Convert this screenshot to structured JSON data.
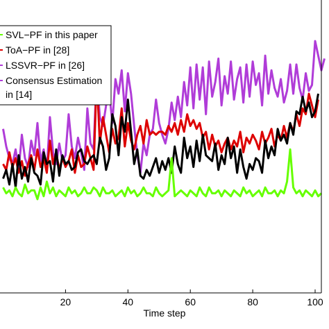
{
  "chart_data": {
    "type": "line",
    "xlabel": "Time step",
    "ylabel": "",
    "xlim": [
      -1,
      102
    ],
    "ylim": [
      0,
      10
    ],
    "x_ticks": [
      20,
      40,
      60,
      80,
      100
    ],
    "grid": false,
    "legend_position": "top-left",
    "series": [
      {
        "name": "SVL−PF in this paper",
        "color": "#66ff00",
        "y": [
          3.6,
          3.4,
          3.5,
          3.3,
          3.6,
          3.4,
          3.3,
          3.7,
          3.4,
          3.5,
          3.5,
          3.2,
          3.6,
          3.3,
          3.8,
          3.4,
          3.6,
          3.3,
          3.5,
          3.4,
          3.3,
          3.6,
          3.4,
          3.5,
          3.3,
          3.4,
          3.6,
          3.4,
          3.4,
          3.6,
          3.5,
          3.3,
          3.6,
          3.4,
          3.4,
          3.5,
          3.3,
          3.4,
          3.5,
          3.3,
          3.6,
          3.4,
          3.5,
          3.3,
          3.4,
          3.6,
          3.4,
          3.4,
          3.3,
          3.6,
          3.4,
          3.3,
          3.4,
          3.5,
          4.6,
          3.3,
          3.4,
          3.5,
          3.4,
          3.3,
          3.5,
          3.4,
          3.3,
          3.6,
          3.4,
          3.3,
          3.6,
          3.4,
          3.4,
          3.5,
          3.3,
          3.5,
          3.4,
          3.3,
          3.5,
          3.4,
          3.3,
          3.6,
          3.4,
          3.5,
          3.3,
          3.4,
          3.5,
          3.3,
          3.6,
          3.4,
          3.4,
          3.5,
          3.3,
          3.5,
          3.4,
          3.8,
          4.9,
          3.6,
          3.4,
          3.5,
          3.3,
          3.5,
          3.4,
          3.3,
          3.5,
          3.3,
          3.4
        ],
        "label_text": "SVL−PF in this paper"
      },
      {
        "name": "ToA−PF in [28]",
        "color": "#dd0000",
        "y": [
          4.4,
          4.2,
          4.8,
          4.3,
          4.6,
          4.1,
          4.5,
          4.0,
          4.4,
          4.7,
          4.2,
          4.9,
          4.3,
          4.6,
          4.1,
          5.2,
          4.4,
          4.8,
          4.2,
          4.6,
          4.3,
          4.5,
          4.9,
          4.1,
          4.7,
          4.3,
          4.4,
          5.0,
          4.6,
          4.2,
          7.4,
          5.1,
          6.0,
          5.4,
          4.8,
          5.6,
          5.1,
          5.3,
          6.3,
          5.0,
          5.8,
          5.2,
          4.9,
          5.4,
          5.7,
          5.1,
          5.9,
          5.4,
          5.5,
          5.4,
          5.5,
          5.5,
          5.4,
          5.7,
          5.5,
          5.8,
          5.4,
          5.9,
          5.5,
          6.1,
          5.7,
          5.9,
          5.6,
          5.8,
          5.3,
          5.5,
          4.9,
          5.4,
          5.0,
          5.2,
          4.8,
          5.1,
          5.3,
          4.9,
          5.2,
          5.0,
          5.5,
          4.8,
          5.3,
          5.1,
          5.4,
          5.2,
          4.9,
          5.5,
          5.1,
          5.3,
          5.6,
          5.0,
          5.4,
          5.2,
          5.7,
          5.3,
          5.8,
          5.5,
          6.1,
          5.7,
          6.3,
          6.1,
          6.8,
          6.4,
          6.0,
          6.6
        ]
      },
      {
        "name": "LSSVR−PF in [26]",
        "color": "#b03cd8",
        "y": [
          5.6,
          5.0,
          4.6,
          4.4,
          4.9,
          4.2,
          5.4,
          4.6,
          4.3,
          5.2,
          4.7,
          5.8,
          4.5,
          4.9,
          4.2,
          6.0,
          4.8,
          4.4,
          5.1,
          4.5,
          4.7,
          6.1,
          5.0,
          4.6,
          5.3,
          4.8,
          4.2,
          6.3,
          5.1,
          4.9,
          7.5,
          6.0,
          5.7,
          6.4,
          6.9,
          5.8,
          7.3,
          6.8,
          7.6,
          6.2,
          7.5,
          6.8,
          5.7,
          4.7,
          4.1,
          5.1,
          4.7,
          5.4,
          5.6,
          6.6,
          5.8,
          5.4,
          5.1,
          5.6,
          6.5,
          5.9,
          6.7,
          6.0,
          7.2,
          6.4,
          7.7,
          6.3,
          7.8,
          6.6,
          7.7,
          6.1,
          7.9,
          6.7,
          7.2,
          8.0,
          6.4,
          7.4,
          6.8,
          7.9,
          6.6,
          7.3,
          7.7,
          6.5,
          7.8,
          6.7,
          7.9,
          7.1,
          7.5,
          6.4,
          8.1,
          6.8,
          7.6,
          7.0,
          6.7,
          7.3,
          6.5,
          6.9,
          7.8,
          6.8,
          7.8,
          7.0,
          6.6,
          7.5,
          6.9,
          7.1,
          8.6,
          8.1,
          7.6,
          8.0
        ]
      },
      {
        "name": "Consensus Estimation in [14]",
        "color": "#000000",
        "y": [
          3.9,
          4.2,
          3.7,
          4.4,
          3.6,
          4.7,
          3.9,
          4.3,
          3.8,
          4.6,
          4.1,
          4.0,
          3.7,
          4.8,
          4.4,
          4.5,
          3.8,
          4.9,
          4.0,
          4.7,
          4.4,
          4.5,
          4.2,
          4.3,
          4.8,
          4.9,
          4.5,
          4.4,
          4.6,
          4.7,
          4.4,
          5.3,
          5.0,
          4.2,
          4.6,
          6.1,
          5.7,
          4.7,
          6.0,
          5.5,
          6.6,
          5.5,
          4.4,
          4.9,
          4.0,
          3.9,
          4.2,
          4.0,
          4.3,
          4.6,
          4.1,
          4.5,
          4.2,
          4.6,
          4.1,
          5.0,
          4.4,
          4.1,
          5.3,
          4.6,
          5.0,
          4.3,
          5.2,
          4.5,
          5.4,
          4.7,
          4.6,
          4.5,
          5.1,
          4.2,
          4.7,
          4.4,
          5.3,
          4.6,
          5.0,
          4.1,
          4.9,
          4.3,
          3.9,
          4.4,
          4.2,
          4.6,
          4.5,
          4.1,
          5.2,
          4.6,
          5.0,
          4.7,
          5.6,
          5.2,
          5.4,
          5.1,
          5.8,
          5.4,
          6.2,
          6.1,
          6.7,
          6.2,
          6.5,
          6.0,
          6.2,
          6.8
        ]
      }
    ]
  },
  "legend": {
    "items": [
      {
        "text": "SVL−PF in this paper"
      },
      {
        "text": "ToA−PF in [28]"
      },
      {
        "text": "LSSVR−PF in [26]"
      },
      {
        "text": "Consensus Estimation"
      },
      {
        "text": "in [14]"
      }
    ]
  },
  "x_tick_labels": [
    "20",
    "40",
    "60",
    "80",
    "100"
  ]
}
